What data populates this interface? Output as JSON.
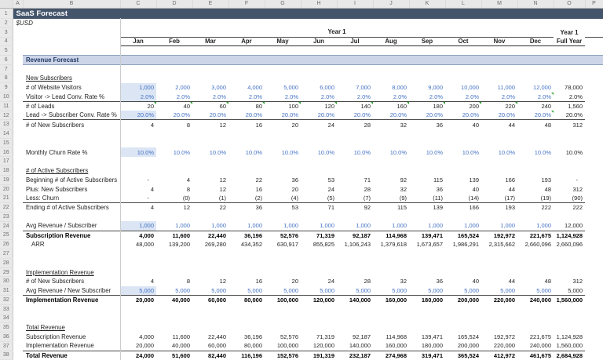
{
  "title_bar": {
    "title": "SaaS Forecast"
  },
  "subtitle": "$USD",
  "columns": {
    "letters": [
      "A",
      "B",
      "C",
      "D",
      "E",
      "F",
      "G",
      "H",
      "I",
      "J",
      "K",
      "L",
      "M",
      "N",
      "O",
      "P"
    ],
    "months": [
      "Jan",
      "Feb",
      "Mar",
      "Apr",
      "May",
      "Jun",
      "Jul",
      "Aug",
      "Sep",
      "Oct",
      "Nov",
      "Dec"
    ],
    "year_group_label": "Year 1",
    "full_year_label_line1": "Year 1",
    "full_year_label_line2": "Full Year"
  },
  "colors": {
    "title_bar_bg": "#44546A",
    "section_band_bg": "#CDD5E8",
    "input_fill": "#DBE5F4",
    "input_text": "#4472C4",
    "comment_flag_green": "#2DA12D"
  },
  "row_count": 38,
  "rows": [
    {
      "n": 6,
      "type": "band",
      "label": "Revenue Forecast"
    },
    {
      "n": 8,
      "type": "section",
      "label": "New Subscribers"
    },
    {
      "n": 9,
      "label": "# of Website Visitors",
      "style": "input",
      "values": [
        "1,000",
        "2,000",
        "3,000",
        "4,000",
        "5,000",
        "6,000",
        "7,000",
        "8,000",
        "9,000",
        "10,000",
        "11,000",
        "12,000",
        "78,000"
      ]
    },
    {
      "n": 10,
      "label": "Visitor -> Lead Conv. Rate %",
      "style": "input",
      "flags": [
        11
      ],
      "values": [
        "2.0%",
        "2.0%",
        "2.0%",
        "2.0%",
        "2.0%",
        "2.0%",
        "2.0%",
        "2.0%",
        "2.0%",
        "2.0%",
        "2.0%",
        "2.0%",
        "2.0%"
      ]
    },
    {
      "n": 11,
      "label": "# of Leads",
      "style": "formula",
      "border_top": true,
      "flags": [
        0,
        1,
        2,
        3,
        4,
        5,
        6,
        7,
        8,
        9,
        10
      ],
      "values": [
        "20",
        "40",
        "60",
        "80",
        "100",
        "120",
        "140",
        "160",
        "180",
        "200",
        "220",
        "240",
        "1,560"
      ]
    },
    {
      "n": 12,
      "label": "Lead -> Subscriber Conv. Rate %",
      "style": "input",
      "flags": [
        11
      ],
      "values": [
        "20.0%",
        "20.0%",
        "20.0%",
        "20.0%",
        "20.0%",
        "20.0%",
        "20.0%",
        "20.0%",
        "20.0%",
        "20.0%",
        "20.0%",
        "20.0%",
        "20.0%"
      ]
    },
    {
      "n": 13,
      "label": "# of New Subscribers",
      "style": "formula",
      "border_top": true,
      "values": [
        "4",
        "8",
        "12",
        "16",
        "20",
        "24",
        "28",
        "32",
        "36",
        "40",
        "44",
        "48",
        "312"
      ]
    },
    {
      "n": 16,
      "label": "Monthly Churn Rate %",
      "style": "input",
      "values": [
        "10.0%",
        "10.0%",
        "10.0%",
        "10.0%",
        "10.0%",
        "10.0%",
        "10.0%",
        "10.0%",
        "10.0%",
        "10.0%",
        "10.0%",
        "10.0%",
        "10.0%"
      ]
    },
    {
      "n": 18,
      "type": "section",
      "label": "# of Active Subscribers"
    },
    {
      "n": 19,
      "label": "Beginning # of Active Subscribers",
      "style": "formula",
      "values": [
        "-",
        "4",
        "12",
        "22",
        "36",
        "53",
        "71",
        "92",
        "115",
        "139",
        "166",
        "193",
        "-"
      ]
    },
    {
      "n": 20,
      "label": "Plus: New Subscribers",
      "style": "formula",
      "values": [
        "4",
        "8",
        "12",
        "16",
        "20",
        "24",
        "28",
        "32",
        "36",
        "40",
        "44",
        "48",
        "312"
      ]
    },
    {
      "n": 21,
      "label": "Less: Churn",
      "style": "formula",
      "values": [
        "-",
        "(0)",
        "(1)",
        "(2)",
        "(4)",
        "(5)",
        "(7)",
        "(9)",
        "(11)",
        "(14)",
        "(17)",
        "(19)",
        "(90)"
      ]
    },
    {
      "n": 22,
      "label": "Ending # of Active Subscribers",
      "style": "formula",
      "border_top": true,
      "values": [
        "4",
        "12",
        "22",
        "36",
        "53",
        "71",
        "92",
        "115",
        "139",
        "166",
        "193",
        "222",
        "222"
      ]
    },
    {
      "n": 24,
      "label": "Avg Revenue / Subscriber",
      "style": "input",
      "values": [
        "1,000",
        "1,000",
        "1,000",
        "1,000",
        "1,000",
        "1,000",
        "1,000",
        "1,000",
        "1,000",
        "1,000",
        "1,000",
        "1,000",
        "12,000"
      ]
    },
    {
      "n": 25,
      "label": "Subscription Revenue",
      "style": "formula",
      "bold": true,
      "border_top": true,
      "values": [
        "4,000",
        "11,600",
        "22,440",
        "36,196",
        "52,576",
        "71,319",
        "92,187",
        "114,968",
        "139,471",
        "165,524",
        "192,972",
        "221,675",
        "1,124,928"
      ]
    },
    {
      "n": 26,
      "label": "ARR",
      "style": "formula",
      "indent": true,
      "values": [
        "48,000",
        "139,200",
        "269,280",
        "434,352",
        "630,917",
        "855,825",
        "1,106,243",
        "1,379,618",
        "1,673,657",
        "1,986,291",
        "2,315,662",
        "2,660,096",
        "2,660,096"
      ]
    },
    {
      "n": 29,
      "type": "section",
      "label": "Implementation Revenue"
    },
    {
      "n": 30,
      "label": "# of New Subscribers",
      "style": "formula",
      "values": [
        "4",
        "8",
        "12",
        "16",
        "20",
        "24",
        "28",
        "32",
        "36",
        "40",
        "44",
        "48",
        "312"
      ]
    },
    {
      "n": 31,
      "label": "Avg Revenue / New Subscriber",
      "style": "input",
      "values": [
        "5,000",
        "5,000",
        "5,000",
        "5,000",
        "5,000",
        "5,000",
        "5,000",
        "5,000",
        "5,000",
        "5,000",
        "5,000",
        "5,000",
        "5,000"
      ]
    },
    {
      "n": 32,
      "label": "Implementation Revenue",
      "style": "formula",
      "bold": true,
      "border_top": true,
      "values": [
        "20,000",
        "40,000",
        "60,000",
        "80,000",
        "100,000",
        "120,000",
        "140,000",
        "160,000",
        "180,000",
        "200,000",
        "220,000",
        "240,000",
        "1,560,000"
      ]
    },
    {
      "n": 35,
      "type": "section",
      "label": "Total Revenue"
    },
    {
      "n": 36,
      "label": "Subscription Revenue",
      "style": "formula",
      "values": [
        "4,000",
        "11,600",
        "22,440",
        "36,196",
        "52,576",
        "71,319",
        "92,187",
        "114,968",
        "139,471",
        "165,524",
        "192,972",
        "221,675",
        "1,124,928"
      ]
    },
    {
      "n": 37,
      "label": "Implementation Revenue",
      "style": "formula",
      "values": [
        "20,000",
        "40,000",
        "60,000",
        "80,000",
        "100,000",
        "120,000",
        "140,000",
        "160,000",
        "180,000",
        "200,000",
        "220,000",
        "240,000",
        "1,560,000"
      ]
    },
    {
      "n": 38,
      "label": "Total Revenue",
      "style": "formula",
      "bold": true,
      "border_top": true,
      "values": [
        "24,000",
        "51,600",
        "82,440",
        "116,196",
        "152,576",
        "191,319",
        "232,187",
        "274,968",
        "319,471",
        "365,524",
        "412,972",
        "461,675",
        "2,684,928"
      ]
    }
  ]
}
